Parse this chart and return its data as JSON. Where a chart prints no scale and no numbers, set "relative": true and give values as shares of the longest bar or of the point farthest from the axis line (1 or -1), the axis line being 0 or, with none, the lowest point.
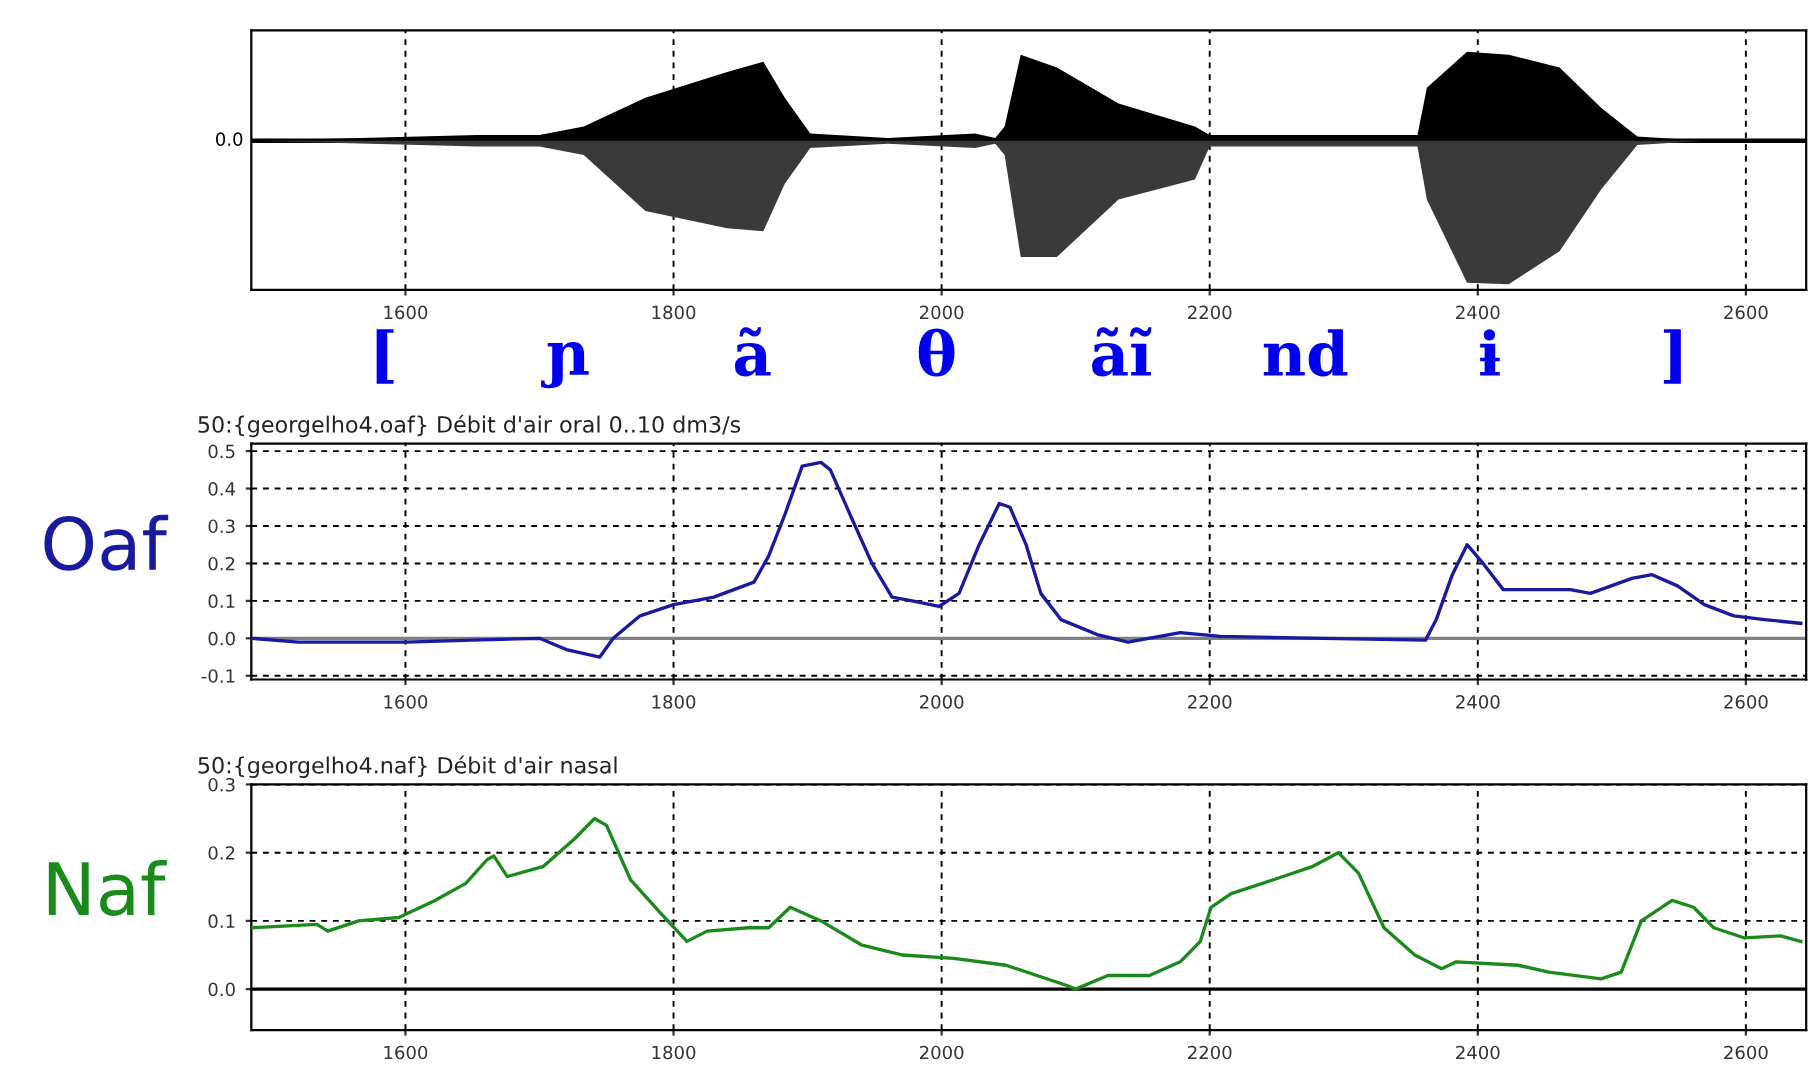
{
  "chart_data": [
    {
      "type": "line",
      "relative": true,
      "grid": "x",
      "marker": "none",
      "line_style": "solid",
      "xlim": [
        1485,
        2645
      ],
      "xticks": [
        1600,
        1800,
        2000,
        2200,
        2400,
        2600
      ],
      "annotations": [
        "0.0"
      ],
      "series": [
        {
          "color": "#000000",
          "x": [
            1485,
            1653,
            1700,
            1733,
            1779,
            1840,
            1867,
            1883,
            1902,
            1960,
            2025,
            2040,
            2047,
            2059,
            2086,
            2132,
            2189,
            2200,
            2280,
            2355,
            2362,
            2392,
            2423,
            2461,
            2492,
            2519,
            2569,
            2645
          ],
          "type": "area",
          "values": [
            0,
            0.04,
            0.04,
            0.1,
            0.3,
            0.48,
            0.55,
            0.3,
            0.05,
            0.02,
            0.05,
            0.02,
            0.1,
            0.6,
            0.51,
            0.26,
            0.1,
            0.04,
            0.04,
            0.04,
            0.37,
            0.62,
            0.6,
            0.51,
            0.23,
            0.03,
            0,
            0
          ]
        },
        {
          "color": "#3a3a3a",
          "type": "area",
          "x": [
            1485,
            1653,
            1700,
            1733,
            1779,
            1840,
            1867,
            1883,
            1902,
            1960,
            2025,
            2040,
            2047,
            2059,
            2086,
            2132,
            2189,
            2200,
            2280,
            2355,
            2362,
            2392,
            2423,
            2461,
            2492,
            2519,
            2569,
            2645
          ],
          "values": [
            0,
            -0.04,
            -0.04,
            -0.1,
            -0.49,
            -0.61,
            -0.63,
            -0.3,
            -0.05,
            -0.02,
            -0.05,
            -0.02,
            -0.1,
            -0.81,
            -0.81,
            -0.41,
            -0.27,
            -0.04,
            -0.04,
            -0.04,
            -0.41,
            -0.99,
            -1.0,
            -0.77,
            -0.34,
            -0.03,
            0,
            0
          ]
        }
      ]
    },
    {
      "type": "line",
      "title": "50:{georgelho4.oaf} Débit d'air oral 0..10 dm3/s",
      "ylabel": "Oaf",
      "grid": true,
      "marker": "none",
      "line_style": "solid",
      "xlim": [
        1485,
        2645
      ],
      "xticks": [
        1600,
        1800,
        2000,
        2200,
        2400,
        2600
      ],
      "ylim": [
        -0.11,
        0.52
      ],
      "yticks": [
        {
          "value": -0.1,
          "label": "-0.1"
        },
        {
          "value": 0,
          "label": "0.0"
        },
        {
          "value": 0.1,
          "label": "0.1"
        },
        {
          "value": 0.2,
          "label": "0.2"
        },
        {
          "value": 0.3,
          "label": "0.3"
        },
        {
          "value": 0.4,
          "label": "0.4"
        },
        {
          "value": 0.5,
          "label": "0.5"
        }
      ],
      "ref_lines": [
        {
          "axis": "y",
          "value": 0,
          "color": "#808080"
        }
      ],
      "annotations": [
        "[",
        "ɲ",
        "ã",
        "θ",
        "ãĩ",
        "nd",
        "ɨ",
        "]"
      ],
      "series": [
        {
          "color": "#1a1aa0",
          "x": [
            1485,
            1520,
            1600,
            1650,
            1700,
            1720,
            1745,
            1755,
            1775,
            1800,
            1830,
            1860,
            1871,
            1883,
            1896,
            1910,
            1917,
            1933,
            1948,
            1963,
            1978,
            1998,
            2013,
            2028,
            2043,
            2051,
            2063,
            2074,
            2089,
            2116,
            2139,
            2178,
            2208,
            2285,
            2361,
            2369,
            2381,
            2392,
            2404,
            2419,
            2438,
            2469,
            2484,
            2515,
            2530,
            2549,
            2569,
            2591,
            2614,
            2641
          ],
          "values": [
            0.0,
            -0.01,
            -0.01,
            -0.005,
            0.0,
            -0.03,
            -0.05,
            0.0,
            0.06,
            0.09,
            0.11,
            0.15,
            0.22,
            0.33,
            0.46,
            0.47,
            0.45,
            0.32,
            0.2,
            0.11,
            0.1,
            0.085,
            0.12,
            0.25,
            0.36,
            0.35,
            0.25,
            0.12,
            0.05,
            0.01,
            -0.01,
            0.015,
            0.005,
            0.0,
            -0.005,
            0.05,
            0.17,
            0.25,
            0.2,
            0.13,
            0.13,
            0.13,
            0.12,
            0.16,
            0.17,
            0.14,
            0.09,
            0.06,
            0.05,
            0.04
          ]
        }
      ]
    },
    {
      "type": "line",
      "title": "50:{georgelho4.naf} Débit d'air nasal",
      "ylabel": "Naf",
      "grid": true,
      "marker": "none",
      "line_style": "solid",
      "xlim": [
        1485,
        2645
      ],
      "xticks": [
        1600,
        1800,
        2000,
        2200,
        2400,
        2600
      ],
      "ylim": [
        -0.06,
        0.3
      ],
      "yticks": [
        {
          "value": 0,
          "label": "0.0"
        },
        {
          "value": 0.1,
          "label": "0.1"
        },
        {
          "value": 0.2,
          "label": "0.2"
        },
        {
          "value": 0.3,
          "label": "0.3"
        }
      ],
      "ref_lines": [
        {
          "axis": "y",
          "value": 0,
          "color": "#000000"
        }
      ],
      "series": [
        {
          "color": "#1a8a1a",
          "x": [
            1485,
            1534,
            1542,
            1565,
            1595,
            1622,
            1645,
            1661,
            1666,
            1676,
            1703,
            1726,
            1741,
            1750,
            1768,
            1791,
            1810,
            1825,
            1856,
            1871,
            1887,
            1910,
            1940,
            1971,
            2009,
            2048,
            2094,
            2100,
            2124,
            2155,
            2178,
            2193,
            2201,
            2216,
            2247,
            2277,
            2296,
            2311,
            2330,
            2353,
            2373,
            2384,
            2430,
            2453,
            2492,
            2507,
            2522,
            2545,
            2561,
            2576,
            2599,
            2626,
            2641
          ],
          "values": [
            0.09,
            0.095,
            0.085,
            0.1,
            0.105,
            0.13,
            0.155,
            0.19,
            0.195,
            0.165,
            0.18,
            0.22,
            0.25,
            0.24,
            0.16,
            0.11,
            0.07,
            0.085,
            0.09,
            0.09,
            0.12,
            0.1,
            0.065,
            0.05,
            0.045,
            0.035,
            0.005,
            0.0,
            0.02,
            0.02,
            0.04,
            0.07,
            0.12,
            0.14,
            0.16,
            0.18,
            0.2,
            0.17,
            0.09,
            0.05,
            0.03,
            0.04,
            0.035,
            0.025,
            0.015,
            0.025,
            0.1,
            0.13,
            0.12,
            0.09,
            0.075,
            0.078,
            0.07
          ]
        }
      ]
    }
  ]
}
